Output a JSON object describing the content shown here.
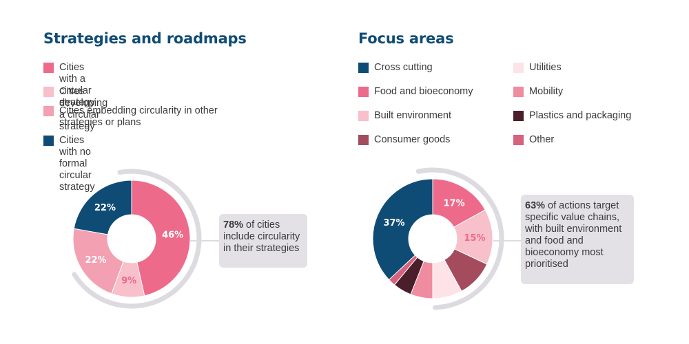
{
  "chart_data": [
    {
      "type": "pie",
      "title": "Strategies and roadmaps",
      "legend": [
        {
          "label": "Cities with a circular strategy",
          "color": "#ee6a8a"
        },
        {
          "label": "Cities developing a circular strategy",
          "color": "#f7c0cb"
        },
        {
          "label": "Cities embedding circularity in other strategies or plans",
          "color": "#f2a0b2"
        },
        {
          "label": "Cities with no formal circular strategy",
          "color": "#0f4c75"
        }
      ],
      "slices": [
        {
          "label": "Cities with a circular strategy",
          "value": 46,
          "display": "46%",
          "color": "#ee6a8a",
          "label_color": "#ffffff"
        },
        {
          "label": "Cities developing a circular strategy",
          "value": 9,
          "display": "9%",
          "color": "#f7c0cb",
          "label_color": "#ee6a8a"
        },
        {
          "label": "Cities embedding circularity in other strategies or plans",
          "value": 22,
          "display": "22%",
          "color": "#f2a0b2",
          "label_color": "#ffffff"
        },
        {
          "label": "Cities with no formal circular strategy",
          "value": 22,
          "display": "22%",
          "color": "#0f4c75",
          "label_color": "#ffffff"
        }
      ],
      "callout": {
        "bold": "78%",
        "text": " of cities include circularity in their strategies"
      }
    },
    {
      "type": "pie",
      "title": "Focus areas",
      "legend": [
        {
          "label": "Cross cutting",
          "color": "#0f4c75"
        },
        {
          "label": "Food and bioeconomy",
          "color": "#ee6a8a"
        },
        {
          "label": "Built environment",
          "color": "#f7c0cb"
        },
        {
          "label": "Consumer goods",
          "color": "#a44c5e"
        },
        {
          "label": "Utilities",
          "color": "#fde3e8"
        },
        {
          "label": "Mobility",
          "color": "#f08ca0"
        },
        {
          "label": "Plastics and packaging",
          "color": "#4a1e2a"
        },
        {
          "label": "Other",
          "color": "#d6627e"
        }
      ],
      "slices": [
        {
          "label": "Food and bioeconomy",
          "value": 17,
          "display": "17%",
          "color": "#ee6a8a",
          "label_color": "#ffffff"
        },
        {
          "label": "Built environment",
          "value": 15,
          "display": "15%",
          "color": "#f7c0cb",
          "label_color": "#ee6a8a"
        },
        {
          "label": "Consumer goods",
          "value": 10,
          "display": "",
          "color": "#a44c5e",
          "label_color": "#ffffff"
        },
        {
          "label": "Utilities",
          "value": 8,
          "display": "",
          "color": "#fde3e8",
          "label_color": "#ffffff"
        },
        {
          "label": "Mobility",
          "value": 6,
          "display": "",
          "color": "#f08ca0",
          "label_color": "#ffffff"
        },
        {
          "label": "Plastics and packaging",
          "value": 5,
          "display": "",
          "color": "#4a1e2a",
          "label_color": "#ffffff"
        },
        {
          "label": "Other",
          "value": 2,
          "display": "",
          "color": "#d6627e",
          "label_color": "#ffffff"
        },
        {
          "label": "Cross cutting",
          "value": 37,
          "display": "37%",
          "color": "#0f4c75",
          "label_color": "#ffffff"
        }
      ],
      "callout": {
        "bold": "63%",
        "text": " of actions target specific value chains, with built environment and food and bioeconomy most prioritised"
      }
    }
  ]
}
